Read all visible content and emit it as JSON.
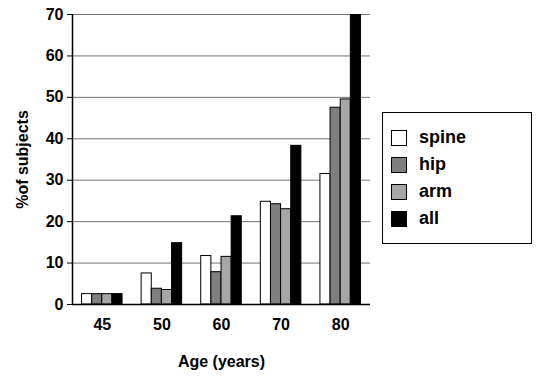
{
  "chart_data": {
    "type": "bar",
    "x_label": "Age (years)",
    "y_label": "%of subjects",
    "categories": [
      "45",
      "50",
      "60",
      "70",
      "80"
    ],
    "series": [
      {
        "name": "spine",
        "color": "#ffffff",
        "values": [
          2.5,
          7.5,
          11.7,
          24.8,
          31.5
        ]
      },
      {
        "name": "hip",
        "color": "#7f7f7f",
        "values": [
          2.5,
          3.8,
          7.8,
          24.2,
          47.5
        ]
      },
      {
        "name": "arm",
        "color": "#a6a6a6",
        "values": [
          2.5,
          3.5,
          11.5,
          23.0,
          49.5
        ]
      },
      {
        "name": "all",
        "color": "#000000",
        "values": [
          2.5,
          14.8,
          21.3,
          38.3,
          70
        ]
      }
    ],
    "ylim": [
      0,
      70
    ],
    "yticks": [
      0,
      10,
      20,
      30,
      40,
      50,
      60,
      70
    ],
    "grid": true,
    "legend": "right"
  }
}
